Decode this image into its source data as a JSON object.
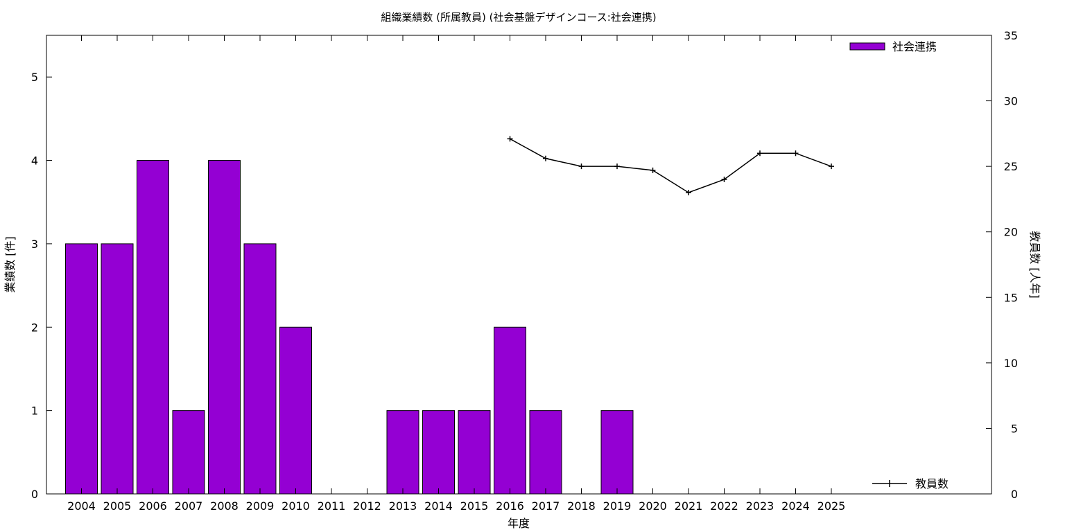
{
  "chart_data": {
    "type": "bar",
    "title": "組織業績数 (所属教員) (社会基盤デザインコース:社会連携)",
    "xlabel": "年度",
    "ylabel": "業績数 [件]",
    "y2label": "教員数 [人年]",
    "categories": [
      "2004",
      "2005",
      "2006",
      "2007",
      "2008",
      "2009",
      "2010",
      "2011",
      "2012",
      "2013",
      "2014",
      "2015",
      "2016",
      "2017",
      "2018",
      "2019",
      "2020",
      "2021",
      "2022",
      "2023",
      "2024",
      "2025"
    ],
    "series": [
      {
        "name": "社会連携",
        "type": "bar",
        "axis": "left",
        "color": "#9400d3",
        "values": [
          3,
          3,
          4,
          1,
          4,
          3,
          2,
          0,
          0,
          1,
          1,
          1,
          2,
          1,
          0,
          1,
          0,
          0,
          0,
          0,
          0,
          0
        ]
      },
      {
        "name": "教員数",
        "type": "line",
        "axis": "right",
        "color": "#000000",
        "values": [
          null,
          null,
          null,
          null,
          null,
          null,
          null,
          null,
          null,
          null,
          null,
          null,
          27.1,
          25.6,
          25.0,
          25.0,
          24.7,
          23.0,
          24.0,
          26.0,
          26.0,
          25.0
        ]
      }
    ],
    "ylim": [
      0,
      5.5
    ],
    "y2lim": [
      0,
      35
    ],
    "yticks": [
      0,
      1,
      2,
      3,
      4,
      5
    ],
    "y2ticks": [
      0,
      5,
      10,
      15,
      20,
      25,
      30,
      35
    ],
    "grid": false,
    "legend": [
      "top-right",
      "bottom-right"
    ]
  }
}
